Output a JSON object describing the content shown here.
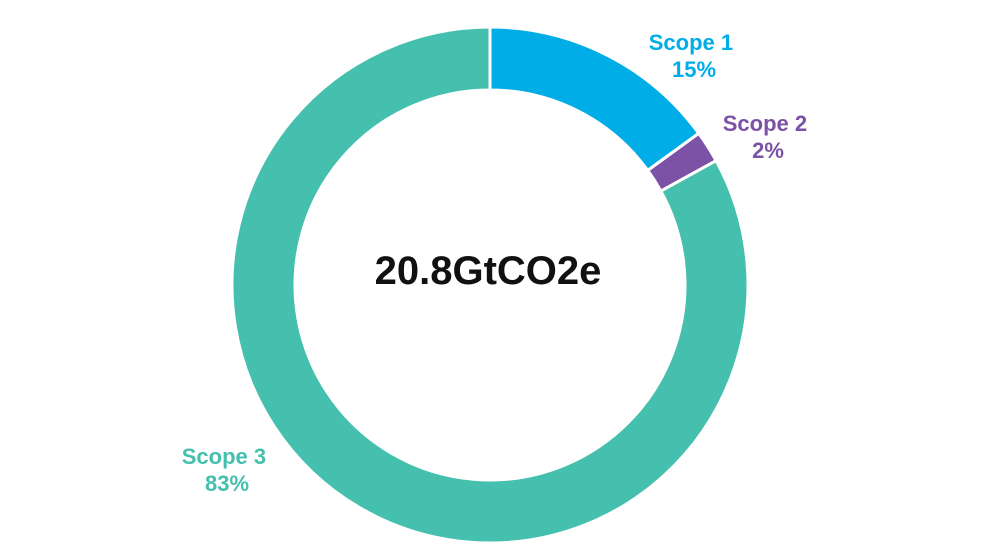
{
  "chart_data": {
    "type": "pie",
    "variant": "donut",
    "center_label": "20.8GtCO2e",
    "slices": [
      {
        "name": "Scope 1",
        "value": 15,
        "value_label": "15%",
        "color": "#00ADE6"
      },
      {
        "name": "Scope 2",
        "value": 2,
        "value_label": "2%",
        "color": "#7B52A6"
      },
      {
        "name": "Scope 3",
        "value": 83,
        "value_label": "83%",
        "color": "#45BFAE"
      }
    ],
    "start_angle": "12 o'clock",
    "direction": "clockwise",
    "legend": "none"
  }
}
